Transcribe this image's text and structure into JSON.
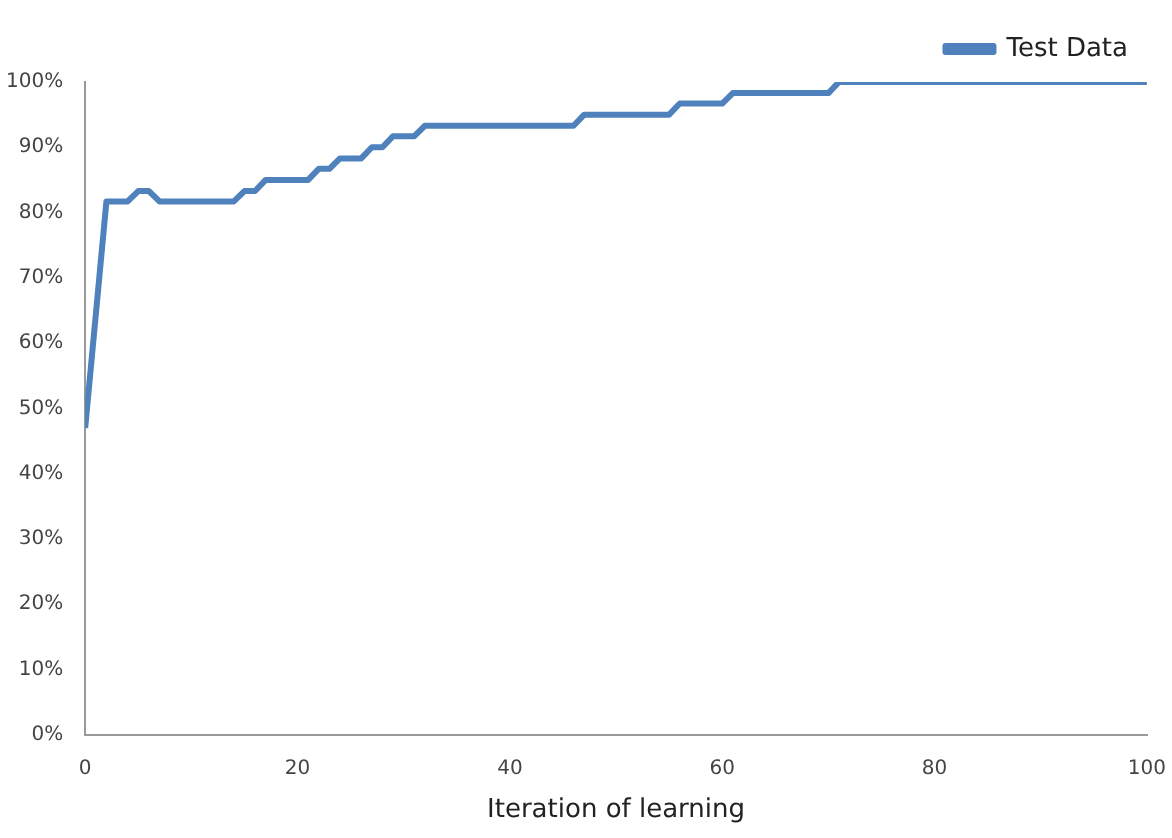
{
  "chart_data": {
    "type": "line",
    "xlabel": "Iteration of learning",
    "xlim": [
      0,
      100
    ],
    "xticks": [
      0,
      20,
      40,
      60,
      80,
      100
    ],
    "ylim": [
      0,
      100
    ],
    "yticks": [
      {
        "value": 0,
        "label": "0%"
      },
      {
        "value": 10,
        "label": "10%"
      },
      {
        "value": 20,
        "label": "20%"
      },
      {
        "value": 30,
        "label": "30%"
      },
      {
        "value": 40,
        "label": "40%"
      },
      {
        "value": 50,
        "label": "50%"
      },
      {
        "value": 60,
        "label": "60%"
      },
      {
        "value": 70,
        "label": "70%"
      },
      {
        "value": 80,
        "label": "80%"
      },
      {
        "value": 90,
        "label": "90%"
      },
      {
        "value": 100,
        "label": "100%"
      }
    ],
    "x": [
      0,
      2,
      4,
      5,
      6,
      7,
      14,
      15,
      16,
      17,
      21,
      22,
      23,
      24,
      26,
      27,
      28,
      29,
      31,
      32,
      46,
      47,
      55,
      56,
      60,
      61,
      70,
      71,
      100
    ],
    "series": [
      {
        "name": "Test Data",
        "color": "#4f81bd",
        "values": [
          47,
          81.7,
          81.7,
          83.3,
          83.3,
          81.7,
          81.7,
          83.3,
          83.3,
          85,
          85,
          86.7,
          86.7,
          88.3,
          88.3,
          90,
          90,
          91.7,
          91.7,
          93.3,
          93.3,
          95,
          95,
          96.7,
          96.7,
          98.3,
          98.3,
          100,
          100
        ]
      }
    ],
    "grid": false,
    "legend": "top right",
    "marker": "none",
    "line_style": "solid"
  }
}
